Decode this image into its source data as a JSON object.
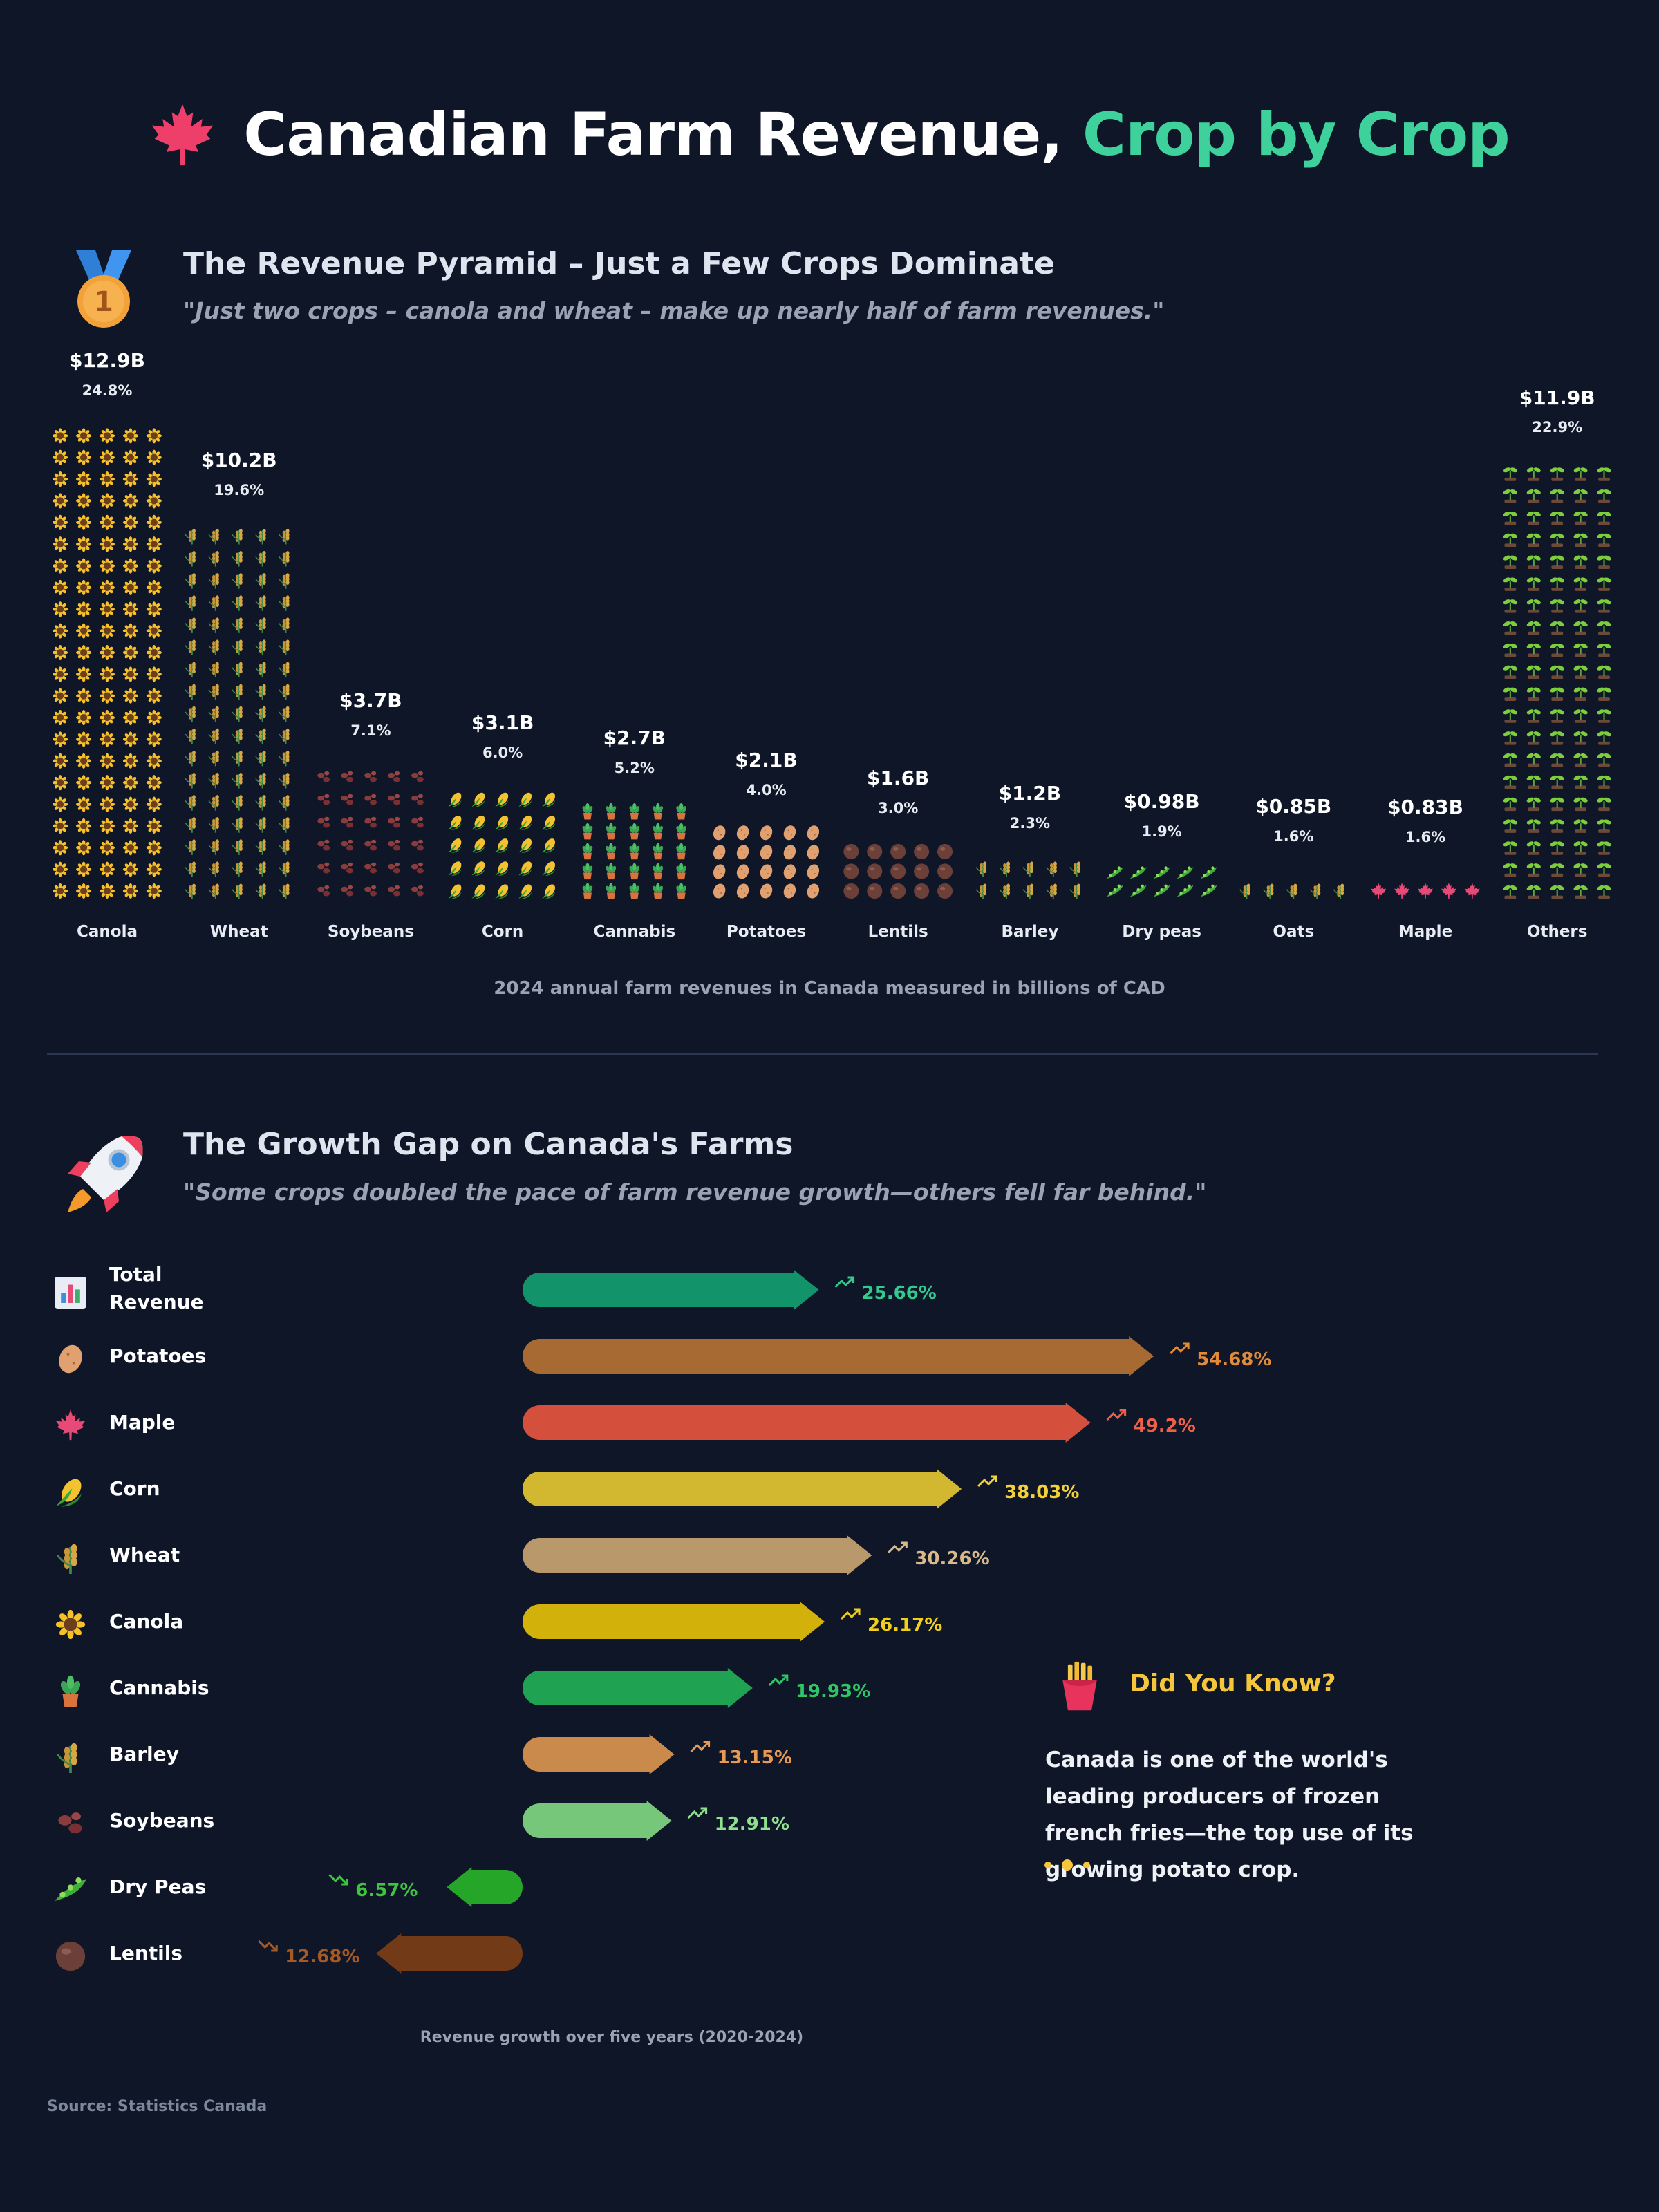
{
  "title": {
    "main": "Canadian Farm Revenue, ",
    "accent": "Crop by Crop"
  },
  "section1": {
    "title": "The Revenue Pyramid – Just a Few Crops Dominate",
    "subtitle": "\"Just two crops – canola and wheat – make up nearly half of farm revenues.\"",
    "caption": "2024 annual farm revenues in Canada measured in billions of CAD"
  },
  "section2": {
    "title": "The Growth Gap on Canada's Farms",
    "subtitle": "\"Some crops doubled the pace of farm revenue growth—others fell far behind.\"",
    "caption": "Revenue growth over five years (2020-2024)"
  },
  "did_you_know": {
    "title": "Did You Know?",
    "text": "Canada is one of the world's leading producers of frozen french fries—the top use of its growing potato crop."
  },
  "source": "Source: Statistics Canada",
  "icons": {
    "title": "maple-leaf-icon",
    "section1": "medal-icon",
    "section2": "rocket-icon",
    "did_you_know": "french-fries-icon"
  },
  "chart_data": [
    {
      "type": "bar",
      "subtype": "pictograph",
      "categories": [
        "Canola",
        "Wheat",
        "Soybeans",
        "Corn",
        "Cannabis",
        "Potatoes",
        "Lentils",
        "Barley",
        "Dry peas",
        "Oats",
        "Maple",
        "Others"
      ],
      "values": [
        12.9,
        10.2,
        3.7,
        3.1,
        2.7,
        2.1,
        1.6,
        1.2,
        0.98,
        0.85,
        0.83,
        11.9
      ],
      "value_labels": [
        "$12.9B",
        "$10.2B",
        "$3.7B",
        "$3.1B",
        "$2.7B",
        "$2.1B",
        "$1.6B",
        "$1.2B",
        "$0.98B",
        "$0.85B",
        "$0.83B",
        "$11.9B"
      ],
      "share_labels": [
        "24.8%",
        "19.6%",
        "7.1%",
        "6.0%",
        "5.2%",
        "4.0%",
        "3.0%",
        "2.3%",
        "1.9%",
        "1.6%",
        "1.6%",
        "22.9%"
      ],
      "icons": [
        "sunflower",
        "wheat",
        "beans",
        "corn",
        "potted-plant",
        "potato",
        "lentil",
        "wheat",
        "pea-pod",
        "wheat",
        "maple-leaf",
        "seedling"
      ],
      "colors": [
        "#e8b923",
        "#c9a35a",
        "#8a3b3b",
        "#f2c230",
        "#3aa655",
        "#e0a070",
        "#6b4038",
        "#c9a35a",
        "#3fae3a",
        "#c9a35a",
        "#e84a78",
        "#7ccf3a"
      ],
      "xlabel": "2024 annual farm revenues in Canada measured in billions of CAD"
    },
    {
      "type": "bar",
      "orientation": "horizontal",
      "categories": [
        "Total Revenue",
        "Potatoes",
        "Maple",
        "Corn",
        "Wheat",
        "Canola",
        "Cannabis",
        "Barley",
        "Soybeans",
        "Dry Peas",
        "Lentils"
      ],
      "values": [
        25.66,
        54.68,
        49.2,
        38.03,
        30.26,
        26.17,
        19.93,
        13.15,
        12.91,
        -6.57,
        -12.68
      ],
      "value_labels": [
        "25.66%",
        "54.68%",
        "49.2%",
        "38.03%",
        "30.26%",
        "26.17%",
        "19.93%",
        "13.15%",
        "12.91%",
        "6.57%",
        "12.68%"
      ],
      "icons": [
        "bar-chart",
        "potato",
        "maple-leaf",
        "corn",
        "wheat",
        "sunflower",
        "potted-plant",
        "wheat",
        "beans",
        "pea-pod",
        "lentil"
      ],
      "colors": [
        "#12936a",
        "#a66a32",
        "#d4503c",
        "#d2b830",
        "#b9996c",
        "#d2b10a",
        "#1fa353",
        "#c98a4c",
        "#76c77a",
        "#25a629",
        "#733a17"
      ],
      "value_colors": [
        "#33c98f",
        "#e08a3a",
        "#f06048",
        "#f2d13a",
        "#d7b98a",
        "#f2cf1a",
        "#2fc765",
        "#e89a55",
        "#8fe08f",
        "#3fc43f",
        "#a55a25"
      ],
      "xlabel": "Revenue growth over five years (2020-2024)"
    }
  ]
}
